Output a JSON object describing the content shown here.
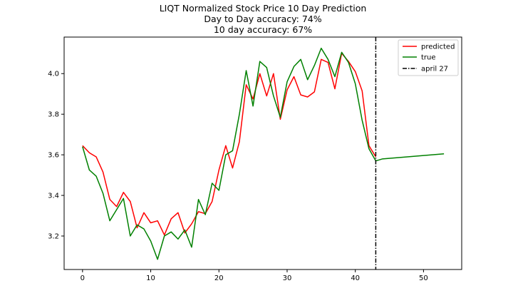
{
  "chart_data": {
    "type": "line",
    "title_lines": [
      "LIQT Normalized Stock Price 10 Day Prediction",
      "Day to Day accuracy: 74%",
      "10 day accuracy: 67%"
    ],
    "xlabel": "",
    "ylabel": "",
    "xlim": [
      -2.7,
      55.6
    ],
    "ylim": [
      3.035,
      4.18
    ],
    "x_ticks": [
      0,
      10,
      20,
      30,
      40,
      50
    ],
    "y_ticks": [
      3.2,
      3.4,
      3.6,
      3.8,
      4.0
    ],
    "y_tick_labels": [
      "3.2",
      "3.4",
      "3.6",
      "3.8",
      "4.0"
    ],
    "grid": false,
    "legend_position": "top-right",
    "series": [
      {
        "name": "predicted",
        "color": "#ff0000",
        "style": "solid",
        "x": [
          0,
          1,
          2,
          3,
          4,
          5,
          6,
          7,
          8,
          9,
          10,
          11,
          12,
          13,
          14,
          15,
          16,
          17,
          18,
          19,
          20,
          21,
          22,
          23,
          24,
          25,
          26,
          27,
          28,
          29,
          30,
          31,
          32,
          33,
          34,
          35,
          36,
          37,
          38,
          39,
          40,
          41,
          42,
          43
        ],
        "y": [
          3.645,
          3.61,
          3.59,
          3.515,
          3.38,
          3.345,
          3.415,
          3.37,
          3.24,
          3.315,
          3.265,
          3.275,
          3.205,
          3.285,
          3.315,
          3.215,
          3.26,
          3.32,
          3.31,
          3.37,
          3.525,
          3.645,
          3.535,
          3.665,
          3.945,
          3.875,
          4.0,
          3.89,
          4.0,
          3.775,
          3.92,
          3.985,
          3.895,
          3.885,
          3.91,
          4.07,
          4.055,
          3.925,
          4.1,
          4.06,
          4.01,
          3.915,
          3.645,
          3.59
        ]
      },
      {
        "name": "true",
        "color": "#008000",
        "style": "solid",
        "x": [
          0,
          1,
          2,
          3,
          4,
          5,
          6,
          7,
          8,
          9,
          10,
          11,
          12,
          13,
          14,
          15,
          16,
          17,
          18,
          19,
          20,
          21,
          22,
          23,
          24,
          25,
          26,
          27,
          28,
          29,
          30,
          31,
          32,
          33,
          34,
          35,
          36,
          37,
          38,
          39,
          40,
          41,
          42,
          43,
          44,
          53
        ],
        "y": [
          3.64,
          3.525,
          3.495,
          3.41,
          3.275,
          3.33,
          3.385,
          3.2,
          3.255,
          3.235,
          3.175,
          3.085,
          3.2,
          3.22,
          3.185,
          3.23,
          3.145,
          3.38,
          3.305,
          3.46,
          3.425,
          3.6,
          3.62,
          3.8,
          4.015,
          3.84,
          4.06,
          4.03,
          3.89,
          3.785,
          3.96,
          4.035,
          4.07,
          3.97,
          4.04,
          4.125,
          4.07,
          3.985,
          4.105,
          4.055,
          3.95,
          3.77,
          3.63,
          3.57,
          3.58,
          3.605
        ]
      }
    ],
    "vline": {
      "name": "april 27",
      "x": 43,
      "color": "#000000",
      "style": "dashdot"
    }
  }
}
